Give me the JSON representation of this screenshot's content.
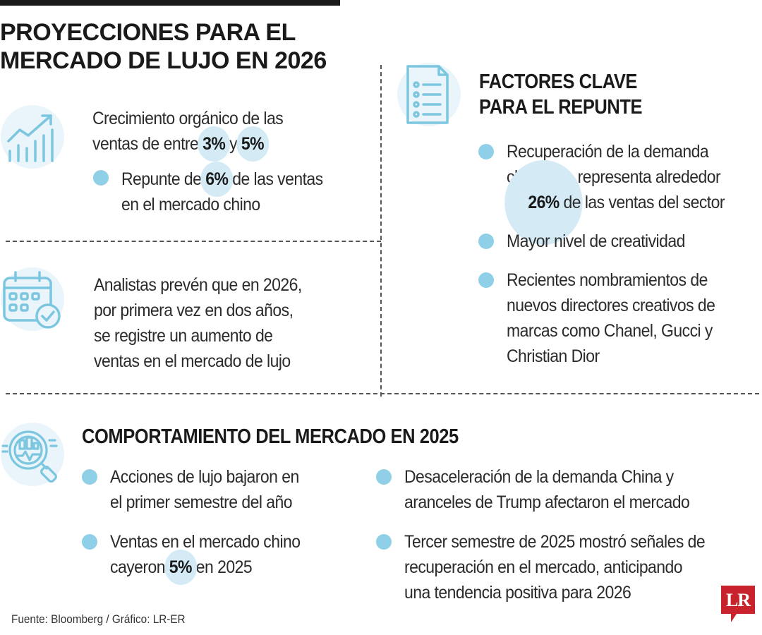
{
  "title": {
    "line1": "PROYECCIONES PARA EL",
    "line2": "MERCADO DE LUJO EN 2026"
  },
  "growth": {
    "text_pre": "Crecimiento orgánico de las",
    "text_mid": "ventas de entre ",
    "value1": "3%",
    "conj": " y ",
    "value2": "5%",
    "bullet_pre": "Repunte de ",
    "bullet_value": "6%",
    "bullet_post": " de las ventas",
    "bullet_line2": "en el mercado chino"
  },
  "analysts": {
    "lines": [
      "Analistas prevén que en 2026,",
      "por primera vez en dos años,",
      "se registre un aumento de",
      "ventas en el mercado de lujo"
    ]
  },
  "factors": {
    "heading_line1": "FACTORES CLAVE",
    "heading_line2": "PARA EL REPUNTE",
    "item1_line1": "Recuperación de la demanda",
    "item1_line2": "china que representa alrededor",
    "item1_pre": "de ",
    "item1_value": "26%",
    "item1_post": " de las ventas del sector",
    "item2": "Mayor nivel de creatividad",
    "item3_lines": [
      "Recientes nombramientos de",
      "nuevos directores creativos de",
      "marcas como Chanel, Gucci y",
      "Christian Dior"
    ]
  },
  "market2025": {
    "heading": "COMPORTAMIENTO DEL MERCADO EN 2025",
    "left1_line1": "Acciones de lujo bajaron en",
    "left1_line2": "el primer semestre del año",
    "left2_line1": "Ventas en el mercado chino",
    "left2_pre": "cayeron ",
    "left2_value": "5%",
    "left2_post": " en 2025",
    "right1_line1": "Desaceleración de la demanda China y",
    "right1_line2": "aranceles de Trump afectaron el mercado",
    "right2_lines": [
      "Tercer semestre de 2025 mostró señales de",
      "recuperación en el mercado, anticipando",
      "una tendencia positiva para 2026"
    ]
  },
  "source": "Fuente: Bloomberg / Gráfico: LR-ER",
  "logo": {
    "text": "LR"
  },
  "colors": {
    "accent": "#8fd0e8",
    "highlight": "#d4ebf6",
    "icon": "#7cc6e0",
    "logo": "#c8232c"
  },
  "icons": [
    "growth-chart-icon",
    "calendar-check-icon",
    "checklist-document-icon",
    "market-analysis-magnifier-icon"
  ]
}
